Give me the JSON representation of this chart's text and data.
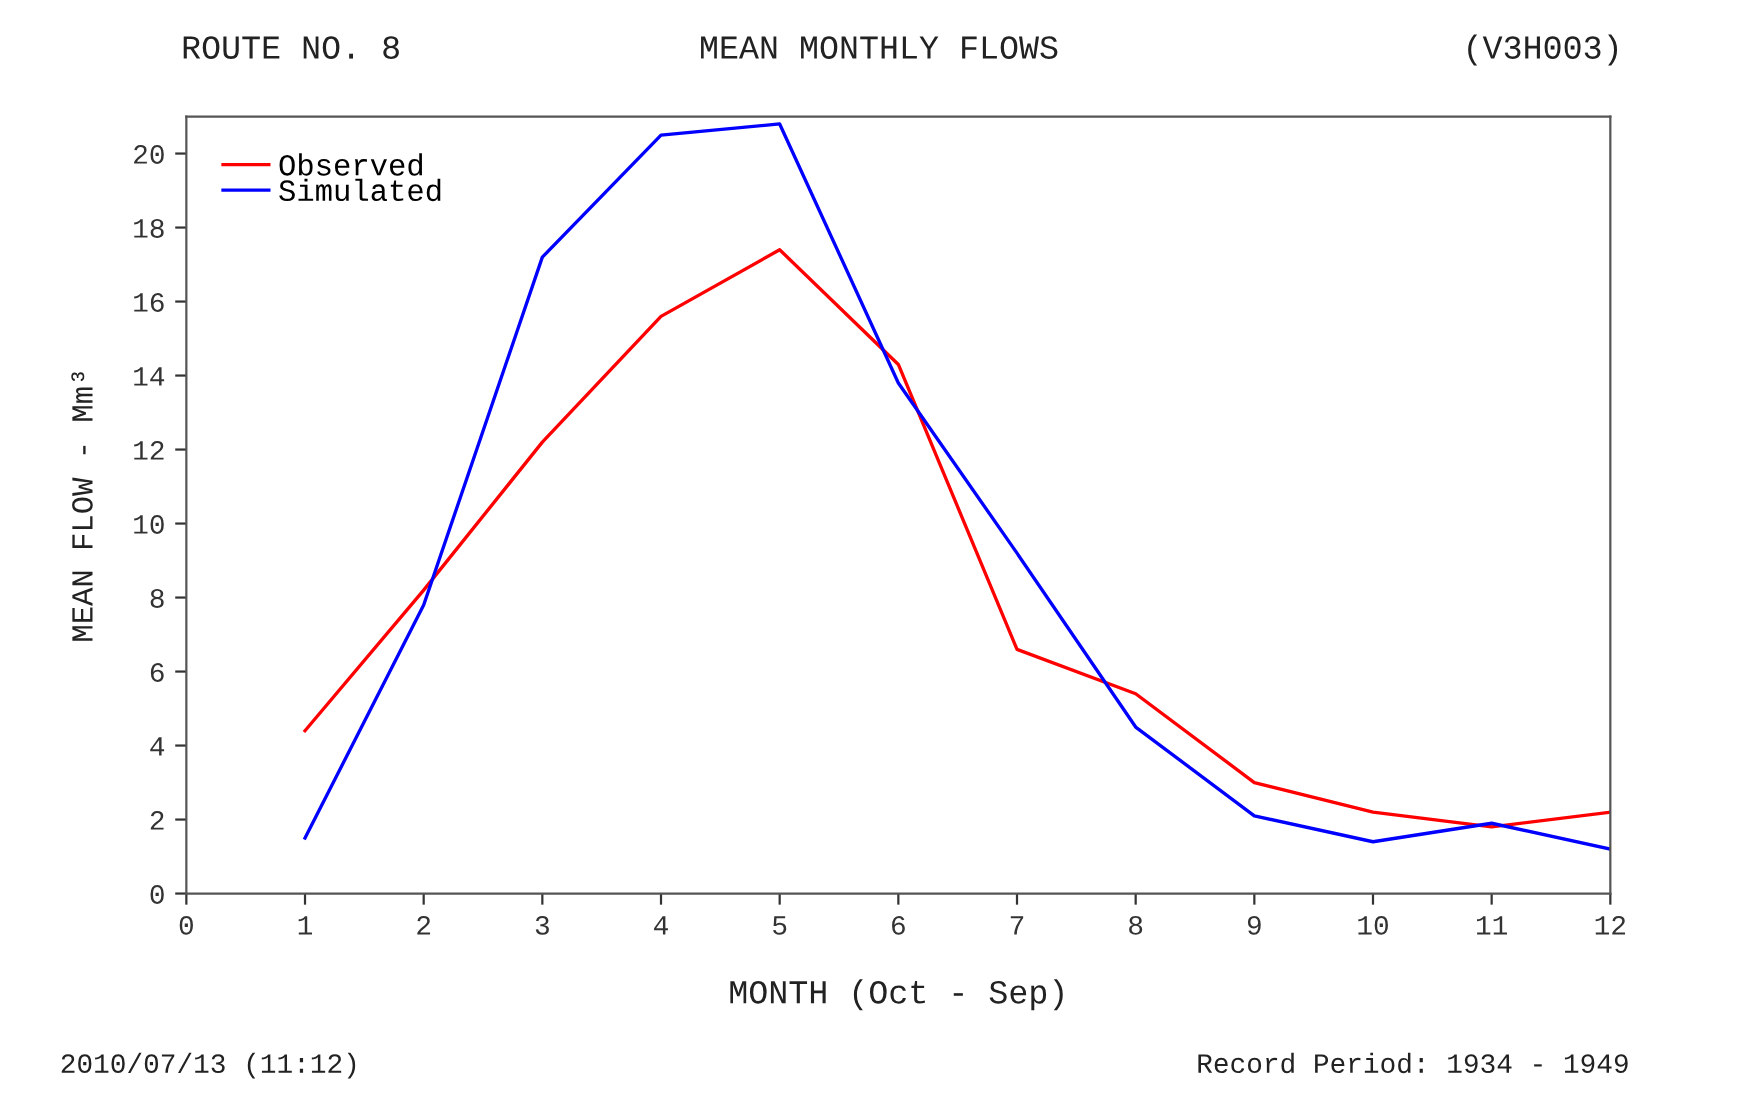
{
  "chart_data": {
    "type": "line",
    "title": "MEAN MONTHLY FLOWS",
    "xlabel": "MONTH (Oct - Sep)",
    "ylabel": "MEAN FLOW - Mm³",
    "annotations": [
      "ROUTE NO. 8",
      "(V3H003)",
      "2010/07/13 (11:12)",
      "Record Period: 1934 - 1949"
    ],
    "x": [
      1,
      2,
      3,
      4,
      5,
      6,
      7,
      8,
      9,
      10,
      11,
      12
    ],
    "series": [
      {
        "name": "Observed",
        "color": "#ff0000",
        "values": [
          4.4,
          8.2,
          12.2,
          15.6,
          17.4,
          14.3,
          6.6,
          5.4,
          3.0,
          2.2,
          1.8,
          2.2
        ]
      },
      {
        "name": "Simulated",
        "color": "#0000ff",
        "values": [
          1.5,
          7.8,
          17.2,
          20.5,
          20.8,
          13.8,
          9.2,
          4.5,
          2.1,
          1.4,
          1.9,
          1.2
        ]
      }
    ],
    "xlim": [
      0,
      12
    ],
    "ylim": [
      0,
      21
    ],
    "xticks": [
      0,
      1,
      2,
      3,
      4,
      5,
      6,
      7,
      8,
      9,
      10,
      11,
      12
    ],
    "yticks": [
      0,
      2,
      4,
      6,
      8,
      10,
      12,
      14,
      16,
      18,
      20
    ],
    "grid": false,
    "legend": "top left",
    "marker": "none",
    "line_style": "solid"
  }
}
